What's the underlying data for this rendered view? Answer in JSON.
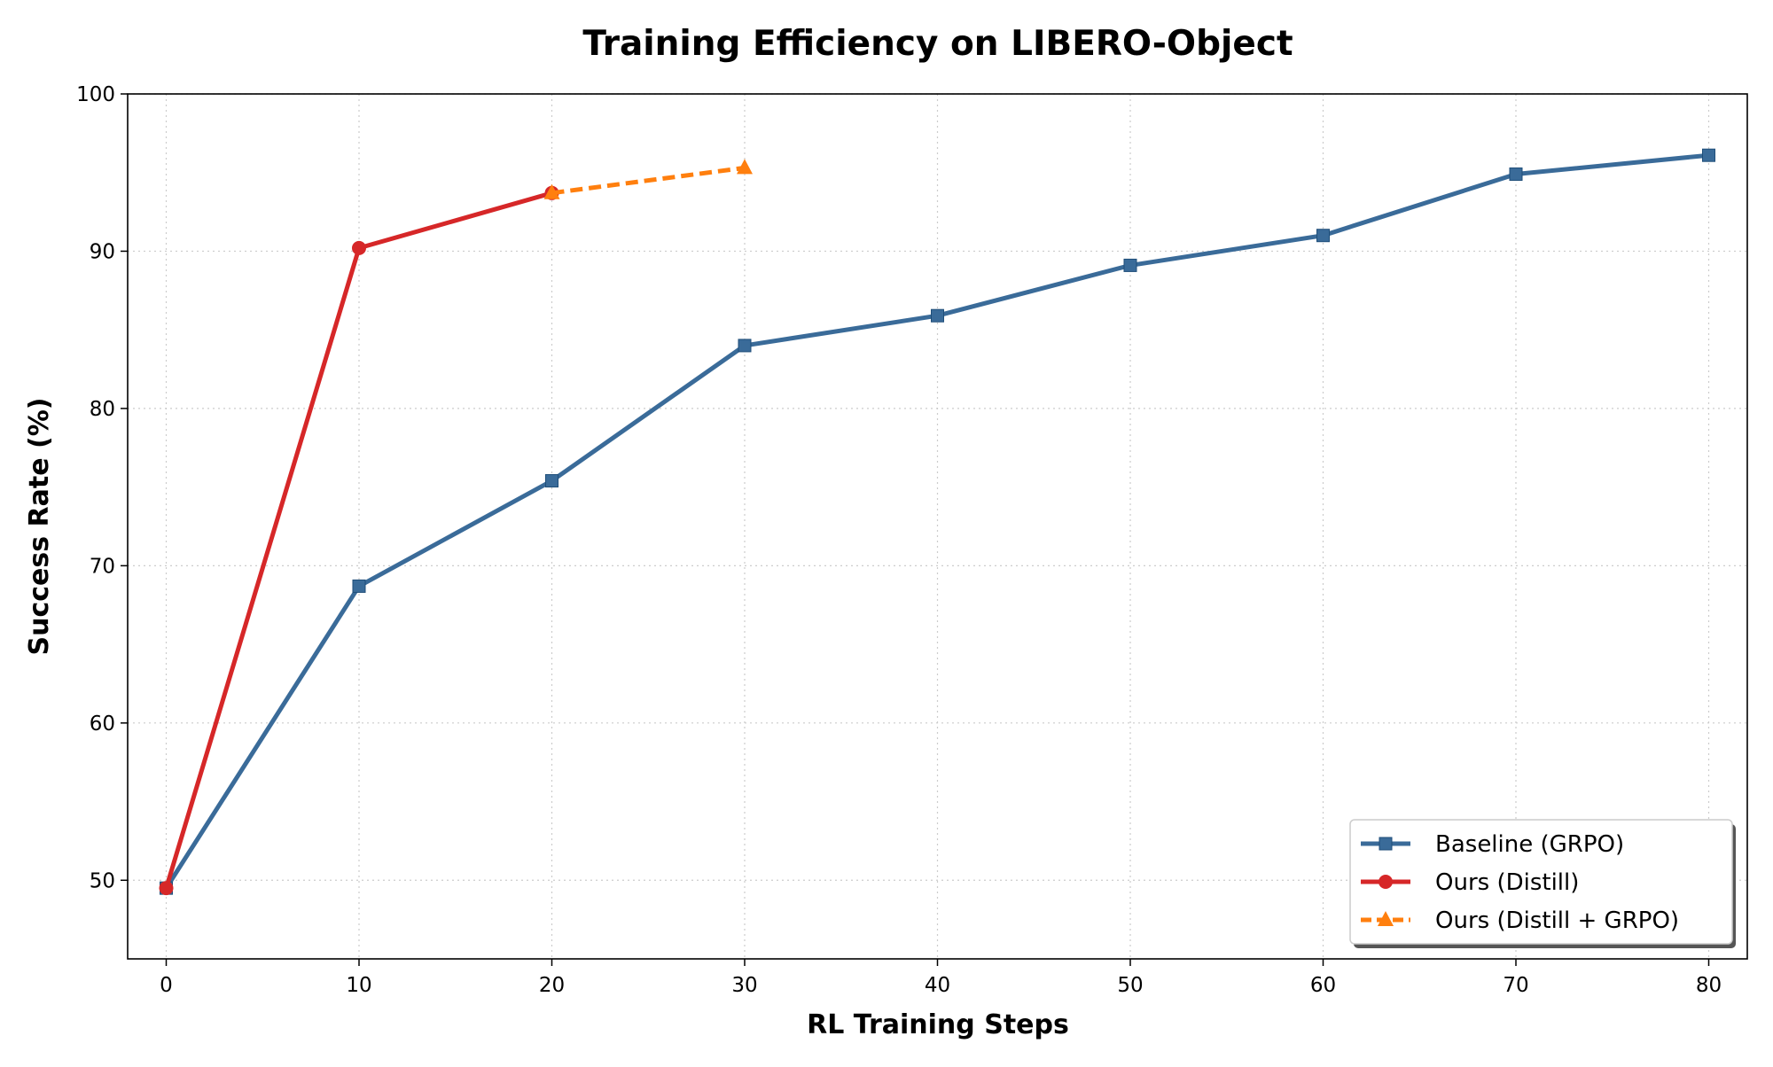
{
  "chart_data": {
    "type": "line",
    "title": "Training Efficiency on LIBERO-Object",
    "xlabel": "RL Training Steps",
    "ylabel": "Success Rate (%)",
    "xlim": [
      -2,
      82
    ],
    "ylim": [
      45,
      100
    ],
    "xticks": [
      0,
      10,
      20,
      30,
      40,
      50,
      60,
      70,
      80
    ],
    "yticks": [
      50,
      60,
      70,
      80,
      90,
      100
    ],
    "grid": true,
    "legend_position": "lower-right",
    "series": [
      {
        "name": "Baseline (GRPO)",
        "color": "#3a6b99",
        "marker": "square",
        "linestyle": "solid",
        "x": [
          0,
          10,
          20,
          30,
          40,
          50,
          60,
          70,
          80
        ],
        "y": [
          49.5,
          68.7,
          75.4,
          84.0,
          85.9,
          89.1,
          91.0,
          94.9,
          96.1
        ]
      },
      {
        "name": "Ours (Distill)",
        "color": "#d62728",
        "marker": "circle",
        "linestyle": "solid",
        "x": [
          0,
          10,
          20
        ],
        "y": [
          49.5,
          90.2,
          93.7
        ]
      },
      {
        "name": "Ours (Distill + GRPO)",
        "color": "#ff7f0e",
        "marker": "triangle",
        "linestyle": "dashed",
        "x": [
          20,
          30
        ],
        "y": [
          93.7,
          95.3
        ]
      }
    ]
  }
}
